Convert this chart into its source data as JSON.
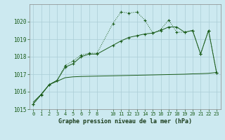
{
  "background_color": "#cce9f0",
  "grid_color": "#aacdd6",
  "line_color": "#1a5c1a",
  "title": "Graphe pression niveau de la mer (hPa)",
  "xlim": [
    -0.5,
    23.5
  ],
  "ylim": [
    1015,
    1021
  ],
  "yticks": [
    1015,
    1016,
    1017,
    1018,
    1019,
    1020
  ],
  "xticks": [
    0,
    1,
    2,
    3,
    4,
    5,
    6,
    7,
    8,
    10,
    11,
    12,
    13,
    14,
    15,
    16,
    17,
    18,
    19,
    20,
    21,
    22,
    23
  ],
  "series1_x": [
    0,
    1,
    2,
    3,
    4,
    5,
    6,
    7,
    8,
    10,
    11,
    12,
    13,
    14,
    15,
    16,
    17,
    18,
    19,
    20,
    21,
    22,
    23
  ],
  "series1_y": [
    1015.3,
    1015.8,
    1016.4,
    1016.65,
    1017.5,
    1017.75,
    1018.1,
    1018.2,
    1018.2,
    1019.9,
    1020.55,
    1020.5,
    1020.55,
    1020.1,
    1019.35,
    1019.55,
    1020.1,
    1019.4,
    1019.4,
    1019.5,
    1018.15,
    1019.5,
    1017.1
  ],
  "series2_x": [
    0,
    1,
    2,
    3,
    4,
    5,
    6,
    7,
    8,
    9,
    10,
    11,
    12,
    13,
    14,
    15,
    16,
    17,
    18,
    19,
    20,
    21,
    22,
    23
  ],
  "series2_y": [
    1015.4,
    1015.85,
    1016.4,
    1016.6,
    1016.8,
    1016.85,
    1016.87,
    1016.88,
    1016.89,
    1016.9,
    1016.91,
    1016.92,
    1016.93,
    1016.94,
    1016.95,
    1016.96,
    1016.97,
    1016.98,
    1016.99,
    1017.0,
    1017.02,
    1017.03,
    1017.05,
    1017.1
  ],
  "series3_x": [
    0,
    1,
    2,
    3,
    4,
    5,
    6,
    7,
    8,
    10,
    11,
    12,
    13,
    14,
    15,
    16,
    17,
    18,
    19,
    20,
    21,
    22,
    23
  ],
  "series3_y": [
    1015.3,
    1015.85,
    1016.4,
    1016.65,
    1017.4,
    1017.6,
    1018.0,
    1018.15,
    1018.15,
    1018.65,
    1018.9,
    1019.1,
    1019.2,
    1019.3,
    1019.35,
    1019.5,
    1019.7,
    1019.7,
    1019.4,
    1019.5,
    1018.15,
    1019.5,
    1017.1
  ]
}
